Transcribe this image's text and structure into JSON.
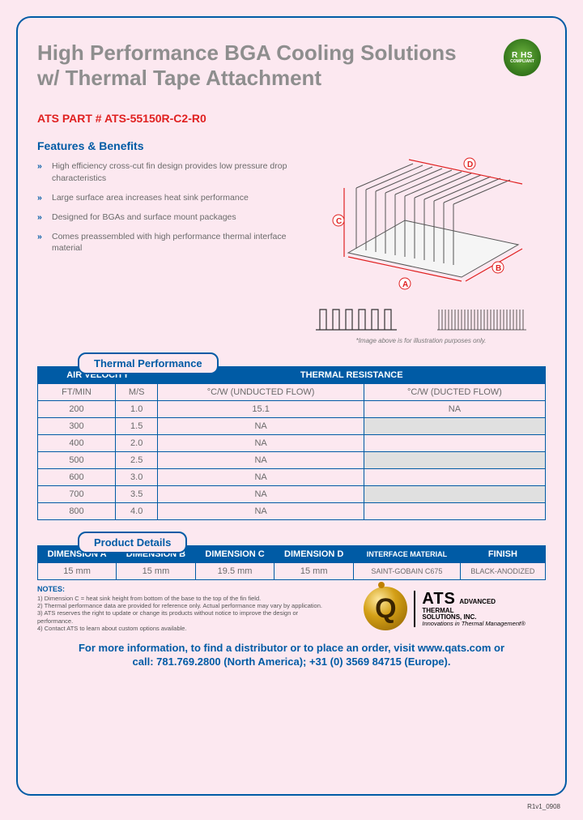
{
  "rohs": {
    "line1": "R HS",
    "line2": "COMPLIANT"
  },
  "title": "High Performance BGA Cooling Solutions w/ Thermal Tape Attachment",
  "part_label": "ATS PART # ATS-55150R-C2-R0",
  "features_heading": "Features & Benefits",
  "features": [
    "High efficiency cross-cut fin design provides low pressure drop characteristics",
    "Large surface area increases heat sink performance",
    "Designed for BGAs and surface mount packages",
    "Comes preassembled with high performance thermal interface material"
  ],
  "dims": {
    "A": "A",
    "B": "B",
    "C": "C",
    "D": "D"
  },
  "diagram_caption": "*Image above is for illustration purposes only.",
  "thermal_tab": "Thermal Performance",
  "tp_headers": {
    "air_velocity": "AIR VELOCITY",
    "thermal_resistance": "THERMAL RESISTANCE",
    "ft_min": "FT/MIN",
    "ms": "M/S",
    "unducted": "°C/W (UNDUCTED FLOW)",
    "ducted": "°C/W (DUCTED FLOW)"
  },
  "tp_rows": [
    {
      "ft": "200",
      "ms": "1.0",
      "und": "15.1",
      "duc": "NA",
      "shade": false
    },
    {
      "ft": "300",
      "ms": "1.5",
      "und": "NA",
      "duc": "",
      "shade": true
    },
    {
      "ft": "400",
      "ms": "2.0",
      "und": "NA",
      "duc": "",
      "shade": false
    },
    {
      "ft": "500",
      "ms": "2.5",
      "und": "NA",
      "duc": "",
      "shade": true
    },
    {
      "ft": "600",
      "ms": "3.0",
      "und": "NA",
      "duc": "",
      "shade": false
    },
    {
      "ft": "700",
      "ms": "3.5",
      "und": "NA",
      "duc": "",
      "shade": true
    },
    {
      "ft": "800",
      "ms": "4.0",
      "und": "NA",
      "duc": "",
      "shade": false
    }
  ],
  "product_tab": "Product Details",
  "pd_headers": [
    "DIMENSION A",
    "DIMENSION B",
    "DIMENSION C",
    "DIMENSION D",
    "INTERFACE MATERIAL",
    "FINISH"
  ],
  "pd_row": [
    "15 mm",
    "15 mm",
    "19.5 mm",
    "15 mm",
    "SAINT-GOBAIN C675",
    "BLACK-ANODIZED"
  ],
  "notes_heading": "NOTES:",
  "notes": [
    "Dimension C = heat sink height from bottom of the base to the top of the fin field.",
    "Thermal performance data are provided for reference only. Actual performance may vary by application.",
    "ATS reserves the right to update or change its products without notice to improve the design or performance.",
    "Contact ATS to learn about custom options available."
  ],
  "logo": {
    "ats": "ATS",
    "l2a": "ADVANCED",
    "l2b": "THERMAL",
    "l2c": "SOLUTIONS, INC.",
    "tag": "Innovations in Thermal Management®"
  },
  "cta_line1": "For more information, to find a distributor or to place an order, visit www.qats.com or",
  "cta_line2": "call: 781.769.2800 (North America); +31 (0) 3569 84715 (Europe).",
  "rev": "R1v1_0908",
  "colors": {
    "brand_blue": "#005ba5",
    "accent_red": "#e02020",
    "page_bg": "#fce8f0",
    "text_gray": "#6a6a6a",
    "title_gray": "#8e8e8e",
    "shade_gray": "#e0e0e0"
  }
}
